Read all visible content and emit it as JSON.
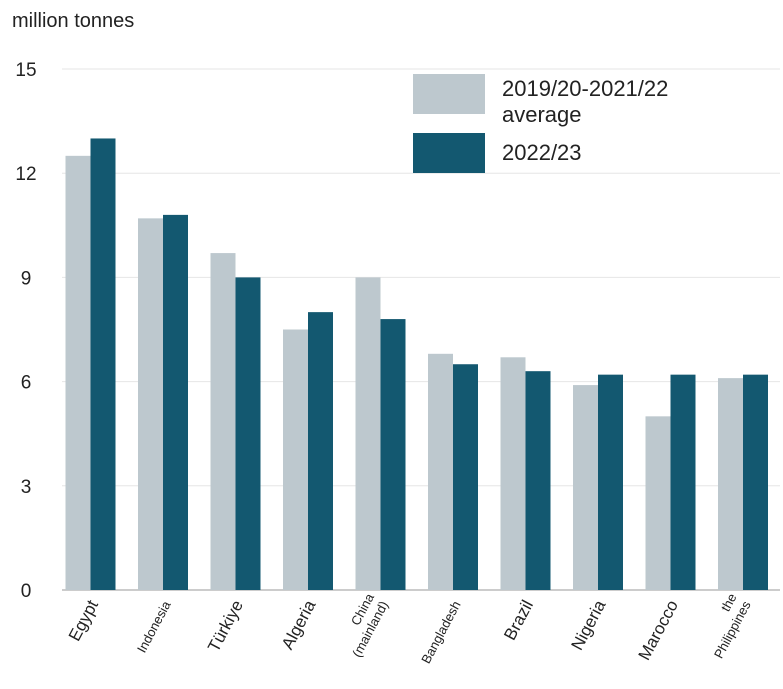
{
  "chart_data": {
    "type": "bar",
    "ylabel": "million tonnes",
    "ylim": [
      0,
      15
    ],
    "yticks": [
      0,
      3,
      6,
      9,
      12,
      15
    ],
    "categories": [
      "Egypt",
      "Indonesia",
      "Türkiye",
      "Algeria",
      "China (mainland)",
      "Bangladesh",
      "Brazil",
      "Nigeria",
      "Marocco",
      "the Philippines"
    ],
    "series": [
      {
        "name": "2019/20-2021/22 average",
        "color": "#bdc8ce",
        "values": [
          12.5,
          10.7,
          9.7,
          7.5,
          9.0,
          6.8,
          6.7,
          5.9,
          5.0,
          6.1
        ]
      },
      {
        "name": "2022/23",
        "color": "#135870",
        "values": [
          13.0,
          10.8,
          9.0,
          8.0,
          7.8,
          6.5,
          6.3,
          6.2,
          6.2,
          6.2
        ]
      }
    ],
    "grid": true,
    "legend": "top-right"
  }
}
